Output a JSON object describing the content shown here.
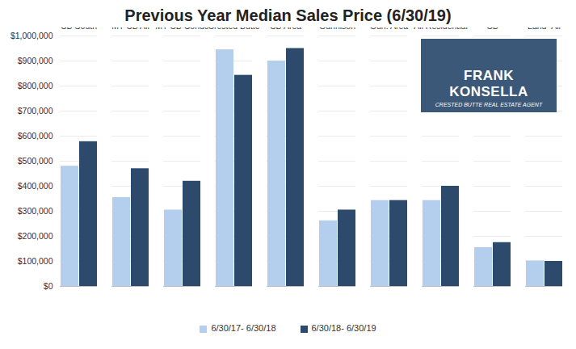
{
  "chart_data": {
    "type": "bar",
    "title": "Previous Year Median Sales Price (6/30/19)",
    "annotations": [
      "FRANK KONSELLA",
      "CRESTED BUTTE REAL ESTATE AGENT"
    ],
    "categories": [
      "CB South",
      "MT CB All",
      "MT CB Condo",
      "Crested Butte",
      "CB Area",
      "Gunnison",
      "Gun. Area",
      "All Residential",
      "Land- CB South thru Mt CB",
      "Land- All"
    ],
    "series": [
      {
        "name": "6/30/17- 6/30/18",
        "color": "#b4cfee",
        "values": [
          480000,
          355000,
          305000,
          945000,
          900000,
          262000,
          343000,
          343000,
          155000,
          102000
        ]
      },
      {
        "name": "6/30/18- 6/30/19",
        "color": "#2d4a6c",
        "values": [
          578000,
          470000,
          420000,
          843000,
          950000,
          305000,
          343000,
          400000,
          175000,
          100000
        ]
      }
    ],
    "ylim": [
      0,
      1000000
    ],
    "yticks": [
      {
        "value": 0,
        "label": "$0"
      },
      {
        "value": 100000,
        "label": "$100,000"
      },
      {
        "value": 200000,
        "label": "$200,000"
      },
      {
        "value": 300000,
        "label": "$300,000"
      },
      {
        "value": 400000,
        "label": "$400,000"
      },
      {
        "value": 500000,
        "label": "$500,000"
      },
      {
        "value": 600000,
        "label": "$600,000"
      },
      {
        "value": 700000,
        "label": "$700,000"
      },
      {
        "value": 800000,
        "label": "$800,000"
      },
      {
        "value": 900000,
        "label": "$900,000"
      },
      {
        "value": 1000000,
        "label": "$1,000,000"
      }
    ],
    "grid": true,
    "legend": "bottom"
  }
}
